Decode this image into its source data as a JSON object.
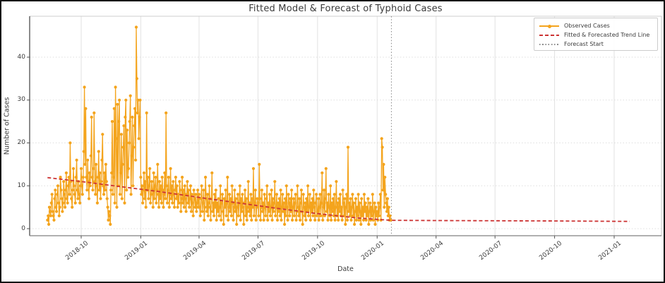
{
  "figure": {
    "title": "Fitted Model & Forecast of Typhoid Cases",
    "xlabel": "Date",
    "ylabel": "Number of Cases"
  },
  "legend": {
    "items": [
      {
        "label": "Observed Cases",
        "type": "line-with-marker",
        "color": "#F4A41D"
      },
      {
        "label": "Fitted & Forecasted Trend Line",
        "type": "dashed-line",
        "color": "#CC3333"
      },
      {
        "label": "Forecast Start",
        "type": "dotted-line",
        "color": "#8C8C8C"
      }
    ]
  },
  "chart_data": {
    "type": "line",
    "title": "Fitted Model & Forecast of Typhoid Cases",
    "xlabel": "Date",
    "ylabel": "Number of Cases",
    "x_tick_labels": [
      "2018-10",
      "2019-01",
      "2019-04",
      "2019-07",
      "2019-10",
      "2020-01",
      "2020-04",
      "2020-07",
      "2020-10",
      "2021-01"
    ],
    "y_tick_labels": [
      0,
      10,
      20,
      30,
      40
    ],
    "ylim": [
      -1.7,
      49.5
    ],
    "grid": true,
    "legend_position": "upper right",
    "forecast_start_date": "2020-01-23",
    "colors": {
      "observed": "#F4A41D",
      "trend": "#CC3333",
      "forecast_line": "#8C8C8C",
      "grid": "#e2e2e2"
    },
    "observed": {
      "name": "Observed Cases",
      "start_date": "2018-08-10",
      "frequency": "daily",
      "values": [
        2,
        3,
        1,
        5,
        4,
        3,
        6,
        8,
        4,
        3,
        2,
        7,
        9,
        5,
        4,
        8,
        10,
        6,
        3,
        5,
        12,
        9,
        7,
        4,
        6,
        11,
        8,
        5,
        9,
        13,
        7,
        6,
        10,
        12,
        8,
        20,
        11,
        7,
        5,
        9,
        14,
        10,
        8,
        6,
        12,
        16,
        9,
        7,
        11,
        8,
        6,
        10,
        14,
        10,
        8,
        12,
        18,
        33,
        15,
        28,
        12,
        9,
        16,
        11,
        7,
        13,
        10,
        17,
        26,
        12,
        9,
        14,
        27,
        11,
        8,
        15,
        10,
        6,
        12,
        18,
        9,
        13,
        7,
        11,
        16,
        22,
        10,
        8,
        13,
        9,
        15,
        11,
        7,
        5,
        2,
        4,
        3,
        1,
        9,
        13,
        25,
        8,
        12,
        28,
        6,
        33,
        21,
        5,
        29,
        10,
        25,
        30,
        8,
        13,
        22,
        7,
        15,
        19,
        24,
        6,
        26,
        30,
        9,
        23,
        12,
        14,
        20,
        25,
        31,
        8,
        17,
        26,
        10,
        19,
        24,
        28,
        16,
        47,
        35,
        27,
        30,
        21,
        26,
        30,
        12,
        8,
        10,
        6,
        9,
        13,
        7,
        11,
        5,
        27,
        9,
        12,
        7,
        10,
        14,
        6,
        8,
        11,
        9,
        5,
        13,
        7,
        10,
        12,
        6,
        9,
        15,
        8,
        5,
        11,
        7,
        10,
        6,
        12,
        9,
        5,
        8,
        13,
        7,
        27,
        10,
        6,
        9,
        12,
        5,
        8,
        14,
        7,
        10,
        6,
        11,
        8,
        5,
        9,
        12,
        7,
        10,
        5,
        8,
        6,
        11,
        9,
        4,
        7,
        12,
        6,
        9,
        5,
        10,
        7,
        4,
        8,
        11,
        6,
        9,
        5,
        7,
        10,
        4,
        8,
        6,
        3,
        9,
        7,
        5,
        8,
        4,
        6,
        9,
        5,
        8,
        5,
        3,
        7,
        10,
        4,
        6,
        9,
        2,
        5,
        12,
        7,
        4,
        8,
        3,
        6,
        10,
        5,
        2,
        7,
        13,
        4,
        6,
        3,
        8,
        5,
        9,
        2,
        6,
        4,
        7,
        3,
        5,
        10,
        2,
        6,
        8,
        4,
        1,
        7,
        5,
        9,
        3,
        6,
        12,
        2,
        5,
        8,
        4,
        7,
        3,
        10,
        6,
        2,
        5,
        9,
        4,
        7,
        1,
        5,
        8,
        3,
        6,
        10,
        2,
        7,
        4,
        8,
        5,
        1,
        6,
        9,
        3,
        7,
        2,
        5,
        11,
        4,
        6,
        3,
        8,
        2,
        7,
        5,
        14,
        3,
        6,
        9,
        2,
        5,
        7,
        6,
        3,
        15,
        7,
        2,
        5,
        9,
        4,
        6,
        2,
        8,
        5,
        3,
        7,
        10,
        2,
        6,
        4,
        8,
        3,
        5,
        9,
        2,
        7,
        4,
        6,
        11,
        3,
        5,
        8,
        2,
        6,
        4,
        7,
        3,
        9,
        2,
        5,
        8,
        4,
        6,
        1,
        7,
        3,
        10,
        5,
        2,
        8,
        6,
        3,
        7,
        4,
        9,
        2,
        5,
        7,
        3,
        6,
        8,
        2,
        4,
        10,
        5,
        3,
        7,
        2,
        6,
        9,
        4,
        1,
        8,
        5,
        3,
        6,
        2,
        7,
        4,
        10,
        3,
        5,
        8,
        2,
        6,
        4,
        7,
        3,
        9,
        5,
        2,
        6,
        8,
        3,
        4,
        7,
        2,
        5,
        8,
        3,
        6,
        13,
        2,
        5,
        9,
        3,
        7,
        14,
        4,
        6,
        2,
        8,
        5,
        3,
        10,
        2,
        6,
        4,
        7,
        3,
        8,
        2,
        5,
        11,
        3,
        6,
        2,
        7,
        4,
        8,
        3,
        5,
        2,
        9,
        6,
        3,
        7,
        1,
        5,
        8,
        2,
        19,
        4,
        6,
        3,
        7,
        2,
        5,
        8,
        3,
        6,
        1,
        4,
        7,
        2,
        5,
        3,
        8,
        2,
        6,
        4,
        1,
        7,
        3,
        5,
        2,
        8,
        4,
        6,
        2,
        5,
        3,
        7,
        1,
        4,
        6,
        2,
        5,
        3,
        8,
        2,
        4,
        6,
        1,
        5,
        3,
        4,
        2,
        6,
        3,
        5,
        8,
        2,
        21,
        19,
        9,
        15,
        5,
        12,
        8,
        6,
        4,
        7,
        3,
        5,
        2,
        3,
        2
      ]
    },
    "trend_fitted": {
      "name": "Fitted Trend",
      "points": [
        [
          "2018-08-10",
          11.9
        ],
        [
          "2018-10-01",
          11.0
        ],
        [
          "2018-12-01",
          9.8
        ],
        [
          "2019-02-01",
          8.6
        ],
        [
          "2019-04-01",
          7.3
        ],
        [
          "2019-06-01",
          6.0
        ],
        [
          "2019-08-01",
          4.7
        ],
        [
          "2019-10-01",
          3.5
        ],
        [
          "2019-12-01",
          2.5
        ],
        [
          "2020-01-23",
          1.95
        ]
      ]
    },
    "trend_forecast": {
      "name": "Forecasted Trend",
      "points": [
        [
          "2020-01-23",
          1.95
        ],
        [
          "2020-04-01",
          1.9
        ],
        [
          "2020-07-01",
          1.85
        ],
        [
          "2020-10-01",
          1.8
        ],
        [
          "2021-01-25",
          1.7
        ]
      ]
    }
  }
}
